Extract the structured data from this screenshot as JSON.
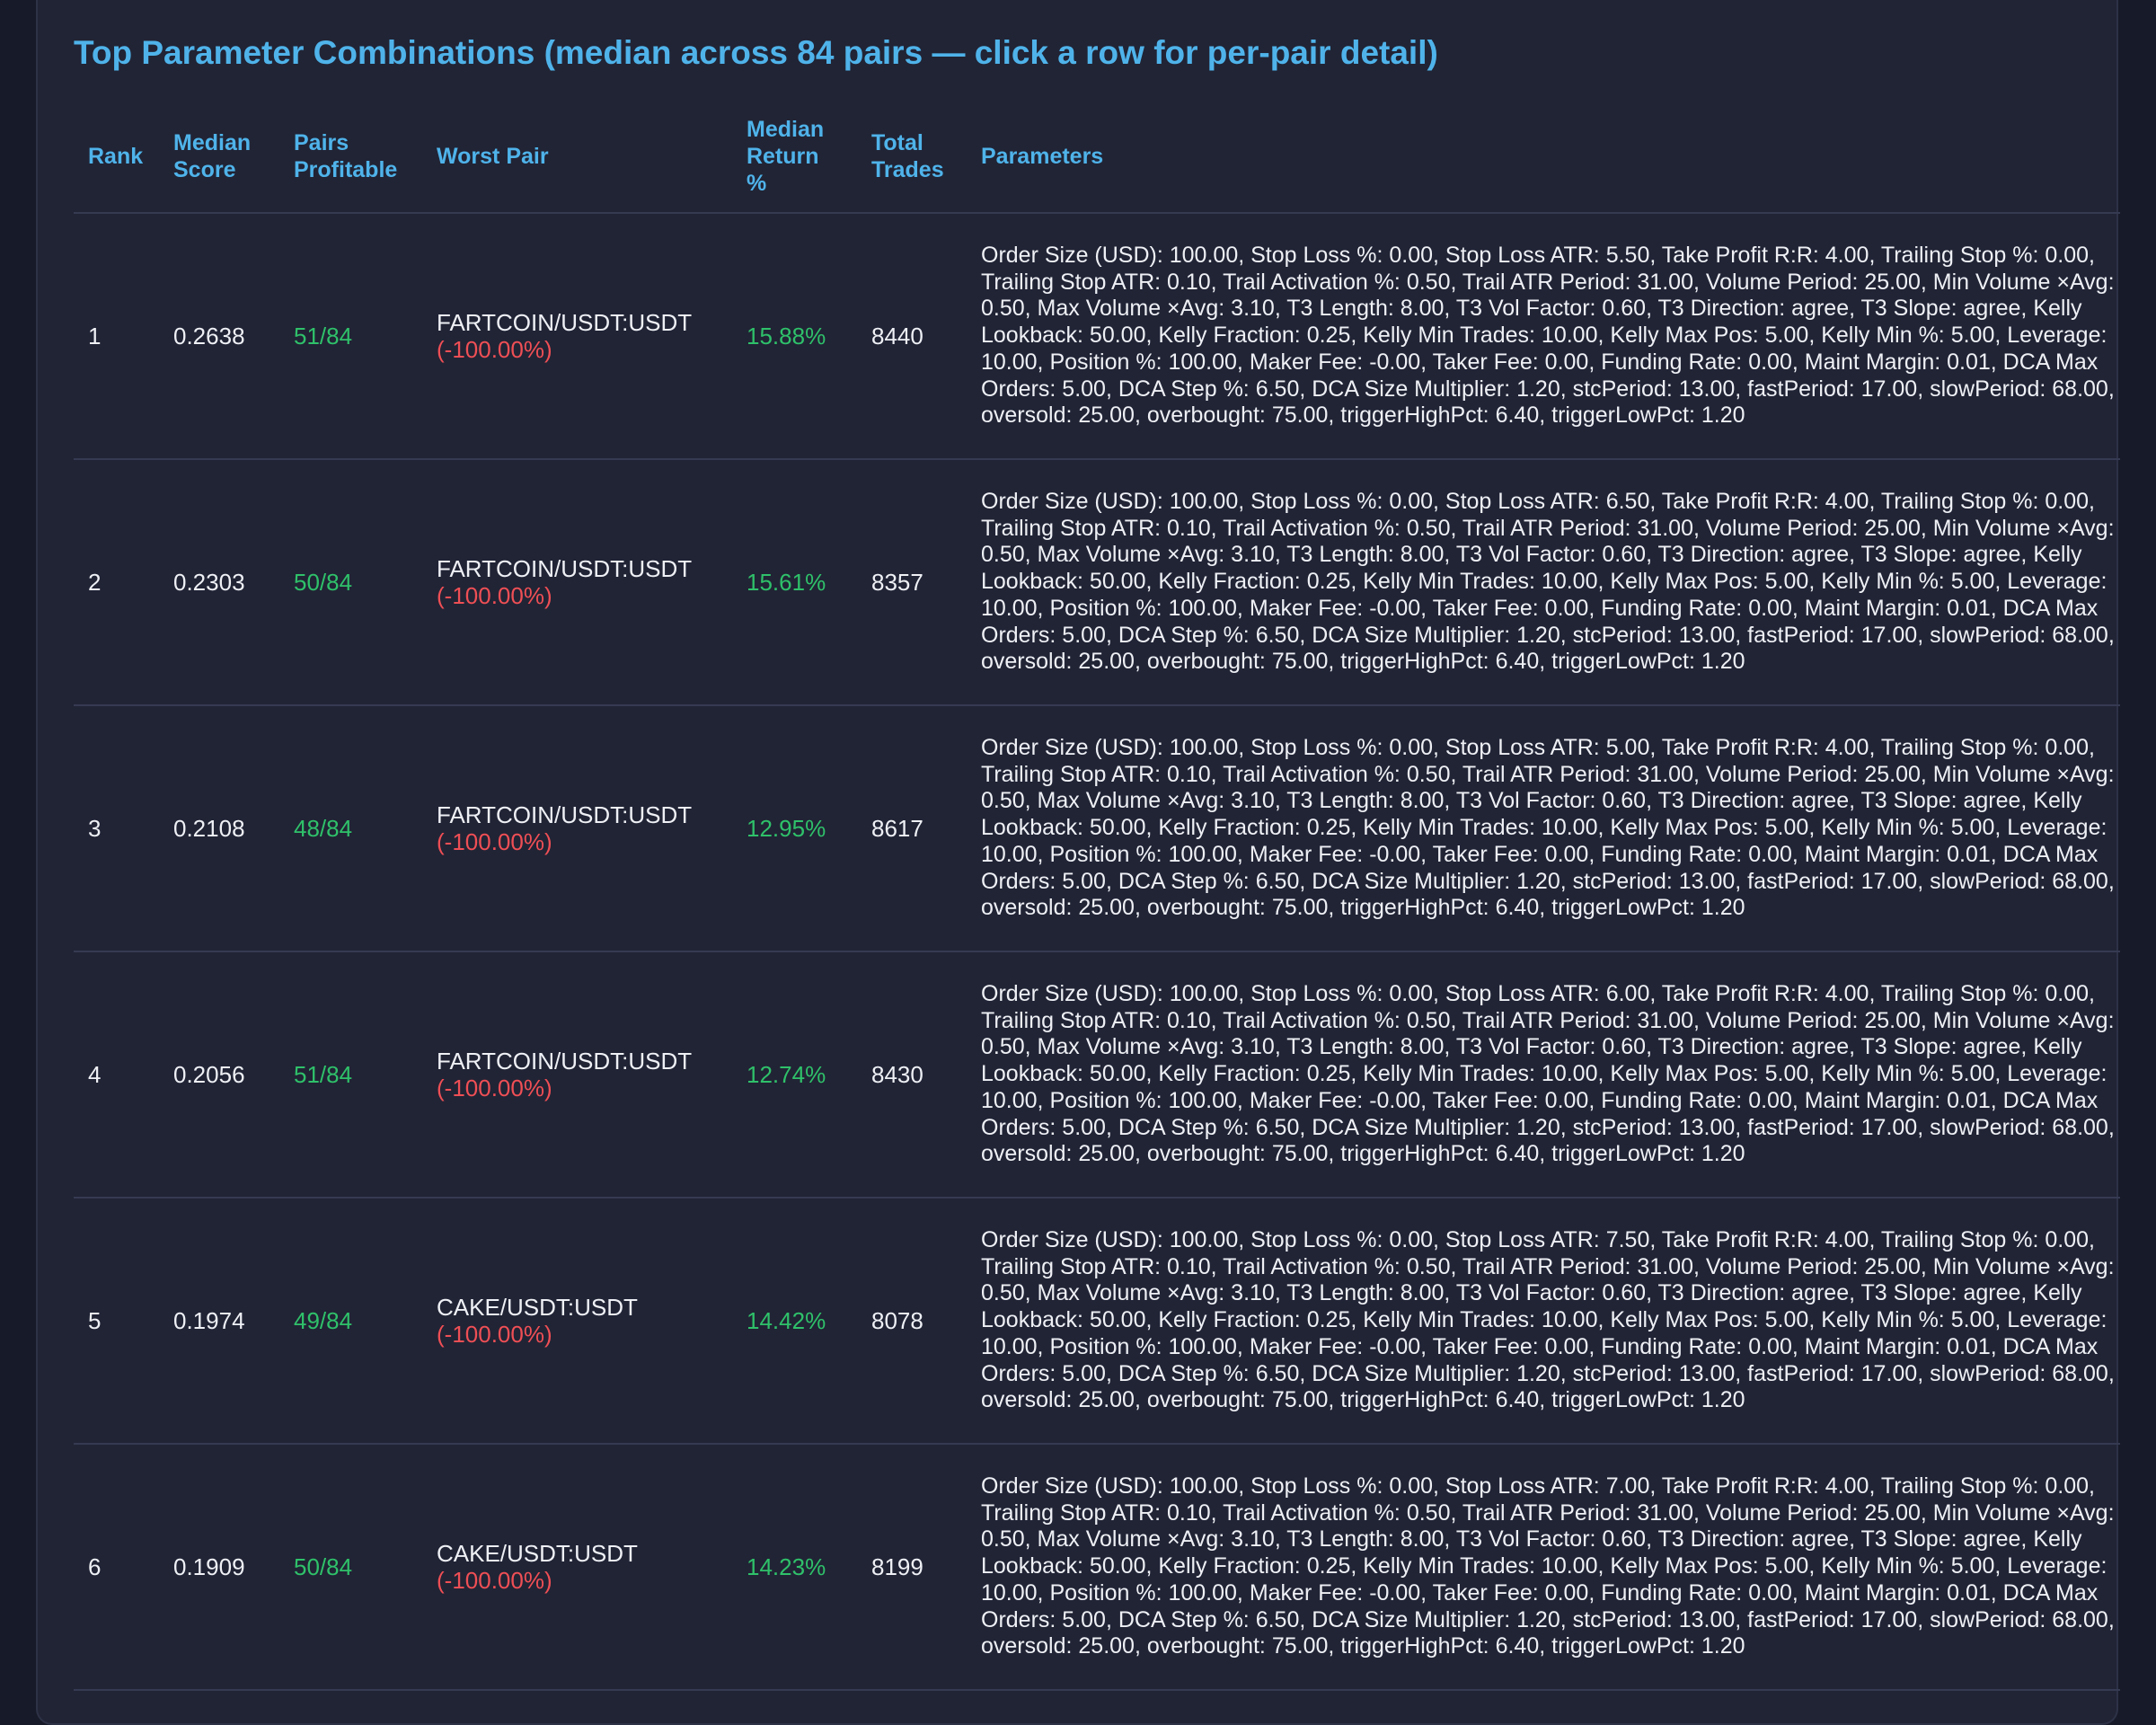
{
  "title": "Top Parameter Combinations (median across 84 pairs — click a row for per-pair detail)",
  "columns": {
    "rank": "Rank",
    "median_score": "Median Score",
    "pairs_profitable": "Pairs Profitable",
    "worst_pair": "Worst Pair",
    "median_return": "Median Return %",
    "total_trades": "Total Trades",
    "parameters": "Parameters"
  },
  "colors": {
    "accent": "#4fb3ea",
    "positive": "#2fc16a",
    "negative": "#ef4f55",
    "panel_bg": "#212435",
    "page_bg": "#171a28"
  },
  "rows": [
    {
      "rank": "1",
      "median_score": "0.2638",
      "pairs_profitable": "51/84",
      "worst_pair": "FARTCOIN/USDT:USDT",
      "worst_return": "(-100.00%)",
      "median_return": "15.88%",
      "total_trades": "8440",
      "parameters": "Order Size (USD): 100.00, Stop Loss %: 0.00, Stop Loss ATR: 5.50, Take Profit R:R: 4.00, Trailing Stop %: 0.00, Trailing Stop ATR: 0.10, Trail Activation %: 0.50, Trail ATR Period: 31.00, Volume Period: 25.00, Min Volume ×Avg: 0.50, Max Volume ×Avg: 3.10, T3 Length: 8.00, T3 Vol Factor: 0.60, T3 Direction: agree, T3 Slope: agree, Kelly Lookback: 50.00, Kelly Fraction: 0.25, Kelly Min Trades: 10.00, Kelly Max Pos: 5.00, Kelly Min %: 5.00, Leverage: 10.00, Position %: 100.00, Maker Fee: -0.00, Taker Fee: 0.00, Funding Rate: 0.00, Maint Margin: 0.01, DCA Max Orders: 5.00, DCA Step %: 6.50, DCA Size Multiplier: 1.20, stcPeriod: 13.00, fastPeriod: 17.00, slowPeriod: 68.00, oversold: 25.00, overbought: 75.00, triggerHighPct: 6.40, triggerLowPct: 1.20"
    },
    {
      "rank": "2",
      "median_score": "0.2303",
      "pairs_profitable": "50/84",
      "worst_pair": "FARTCOIN/USDT:USDT",
      "worst_return": "(-100.00%)",
      "median_return": "15.61%",
      "total_trades": "8357",
      "parameters": "Order Size (USD): 100.00, Stop Loss %: 0.00, Stop Loss ATR: 6.50, Take Profit R:R: 4.00, Trailing Stop %: 0.00, Trailing Stop ATR: 0.10, Trail Activation %: 0.50, Trail ATR Period: 31.00, Volume Period: 25.00, Min Volume ×Avg: 0.50, Max Volume ×Avg: 3.10, T3 Length: 8.00, T3 Vol Factor: 0.60, T3 Direction: agree, T3 Slope: agree, Kelly Lookback: 50.00, Kelly Fraction: 0.25, Kelly Min Trades: 10.00, Kelly Max Pos: 5.00, Kelly Min %: 5.00, Leverage: 10.00, Position %: 100.00, Maker Fee: -0.00, Taker Fee: 0.00, Funding Rate: 0.00, Maint Margin: 0.01, DCA Max Orders: 5.00, DCA Step %: 6.50, DCA Size Multiplier: 1.20, stcPeriod: 13.00, fastPeriod: 17.00, slowPeriod: 68.00, oversold: 25.00, overbought: 75.00, triggerHighPct: 6.40, triggerLowPct: 1.20"
    },
    {
      "rank": "3",
      "median_score": "0.2108",
      "pairs_profitable": "48/84",
      "worst_pair": "FARTCOIN/USDT:USDT",
      "worst_return": "(-100.00%)",
      "median_return": "12.95%",
      "total_trades": "8617",
      "parameters": "Order Size (USD): 100.00, Stop Loss %: 0.00, Stop Loss ATR: 5.00, Take Profit R:R: 4.00, Trailing Stop %: 0.00, Trailing Stop ATR: 0.10, Trail Activation %: 0.50, Trail ATR Period: 31.00, Volume Period: 25.00, Min Volume ×Avg: 0.50, Max Volume ×Avg: 3.10, T3 Length: 8.00, T3 Vol Factor: 0.60, T3 Direction: agree, T3 Slope: agree, Kelly Lookback: 50.00, Kelly Fraction: 0.25, Kelly Min Trades: 10.00, Kelly Max Pos: 5.00, Kelly Min %: 5.00, Leverage: 10.00, Position %: 100.00, Maker Fee: -0.00, Taker Fee: 0.00, Funding Rate: 0.00, Maint Margin: 0.01, DCA Max Orders: 5.00, DCA Step %: 6.50, DCA Size Multiplier: 1.20, stcPeriod: 13.00, fastPeriod: 17.00, slowPeriod: 68.00, oversold: 25.00, overbought: 75.00, triggerHighPct: 6.40, triggerLowPct: 1.20"
    },
    {
      "rank": "4",
      "median_score": "0.2056",
      "pairs_profitable": "51/84",
      "worst_pair": "FARTCOIN/USDT:USDT",
      "worst_return": "(-100.00%)",
      "median_return": "12.74%",
      "total_trades": "8430",
      "parameters": "Order Size (USD): 100.00, Stop Loss %: 0.00, Stop Loss ATR: 6.00, Take Profit R:R: 4.00, Trailing Stop %: 0.00, Trailing Stop ATR: 0.10, Trail Activation %: 0.50, Trail ATR Period: 31.00, Volume Period: 25.00, Min Volume ×Avg: 0.50, Max Volume ×Avg: 3.10, T3 Length: 8.00, T3 Vol Factor: 0.60, T3 Direction: agree, T3 Slope: agree, Kelly Lookback: 50.00, Kelly Fraction: 0.25, Kelly Min Trades: 10.00, Kelly Max Pos: 5.00, Kelly Min %: 5.00, Leverage: 10.00, Position %: 100.00, Maker Fee: -0.00, Taker Fee: 0.00, Funding Rate: 0.00, Maint Margin: 0.01, DCA Max Orders: 5.00, DCA Step %: 6.50, DCA Size Multiplier: 1.20, stcPeriod: 13.00, fastPeriod: 17.00, slowPeriod: 68.00, oversold: 25.00, overbought: 75.00, triggerHighPct: 6.40, triggerLowPct: 1.20"
    },
    {
      "rank": "5",
      "median_score": "0.1974",
      "pairs_profitable": "49/84",
      "worst_pair": "CAKE/USDT:USDT",
      "worst_return": "(-100.00%)",
      "median_return": "14.42%",
      "total_trades": "8078",
      "parameters": "Order Size (USD): 100.00, Stop Loss %: 0.00, Stop Loss ATR: 7.50, Take Profit R:R: 4.00, Trailing Stop %: 0.00, Trailing Stop ATR: 0.10, Trail Activation %: 0.50, Trail ATR Period: 31.00, Volume Period: 25.00, Min Volume ×Avg: 0.50, Max Volume ×Avg: 3.10, T3 Length: 8.00, T3 Vol Factor: 0.60, T3 Direction: agree, T3 Slope: agree, Kelly Lookback: 50.00, Kelly Fraction: 0.25, Kelly Min Trades: 10.00, Kelly Max Pos: 5.00, Kelly Min %: 5.00, Leverage: 10.00, Position %: 100.00, Maker Fee: -0.00, Taker Fee: 0.00, Funding Rate: 0.00, Maint Margin: 0.01, DCA Max Orders: 5.00, DCA Step %: 6.50, DCA Size Multiplier: 1.20, stcPeriod: 13.00, fastPeriod: 17.00, slowPeriod: 68.00, oversold: 25.00, overbought: 75.00, triggerHighPct: 6.40, triggerLowPct: 1.20"
    },
    {
      "rank": "6",
      "median_score": "0.1909",
      "pairs_profitable": "50/84",
      "worst_pair": "CAKE/USDT:USDT",
      "worst_return": "(-100.00%)",
      "median_return": "14.23%",
      "total_trades": "8199",
      "parameters": "Order Size (USD): 100.00, Stop Loss %: 0.00, Stop Loss ATR: 7.00, Take Profit R:R: 4.00, Trailing Stop %: 0.00, Trailing Stop ATR: 0.10, Trail Activation %: 0.50, Trail ATR Period: 31.00, Volume Period: 25.00, Min Volume ×Avg: 0.50, Max Volume ×Avg: 3.10, T3 Length: 8.00, T3 Vol Factor: 0.60, T3 Direction: agree, T3 Slope: agree, Kelly Lookback: 50.00, Kelly Fraction: 0.25, Kelly Min Trades: 10.00, Kelly Max Pos: 5.00, Kelly Min %: 5.00, Leverage: 10.00, Position %: 100.00, Maker Fee: -0.00, Taker Fee: 0.00, Funding Rate: 0.00, Maint Margin: 0.01, DCA Max Orders: 5.00, DCA Step %: 6.50, DCA Size Multiplier: 1.20, stcPeriod: 13.00, fastPeriod: 17.00, slowPeriod: 68.00, oversold: 25.00, overbought: 75.00, triggerHighPct: 6.40, triggerLowPct: 1.20"
    }
  ]
}
